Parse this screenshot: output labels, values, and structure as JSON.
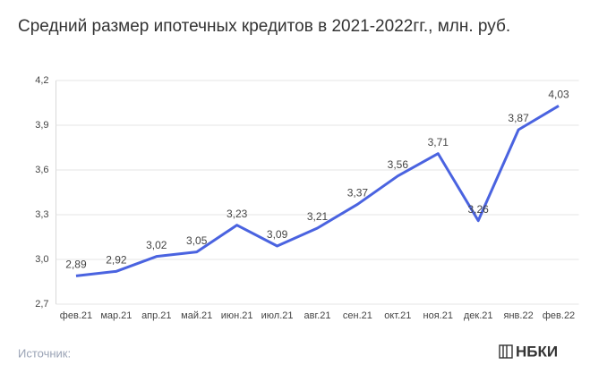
{
  "chart_data": {
    "type": "line",
    "title": "Средний размер ипотечных кредитов в 2021-2022гг., млн. руб.",
    "categories": [
      "фев.21",
      "мар.21",
      "апр.21",
      "май.21",
      "июн.21",
      "июл.21",
      "авг.21",
      "сен.21",
      "окт.21",
      "ноя.21",
      "дек.21",
      "янв.22",
      "фев.22"
    ],
    "values": [
      2.89,
      2.92,
      3.02,
      3.05,
      3.23,
      3.09,
      3.21,
      3.37,
      3.56,
      3.71,
      3.26,
      3.87,
      4.03
    ],
    "value_labels": [
      "2,89",
      "2,92",
      "3,02",
      "3,05",
      "3,23",
      "3,09",
      "3,21",
      "3,37",
      "3,56",
      "3,71",
      "3,26",
      "3,87",
      "4,03"
    ],
    "color": "#4a63e0",
    "ylim": [
      2.7,
      4.2
    ],
    "yticks": [
      {
        "value": 2.7,
        "label": "2,7"
      },
      {
        "value": 3.0,
        "label": "3,0"
      },
      {
        "value": 3.3,
        "label": "3,3"
      },
      {
        "value": 3.6,
        "label": "3,6"
      },
      {
        "value": 3.9,
        "label": "3,9"
      },
      {
        "value": 4.2,
        "label": "4,2"
      }
    ],
    "grid": true
  },
  "footer": {
    "source": "Источник:",
    "logo": "НБКИ"
  }
}
